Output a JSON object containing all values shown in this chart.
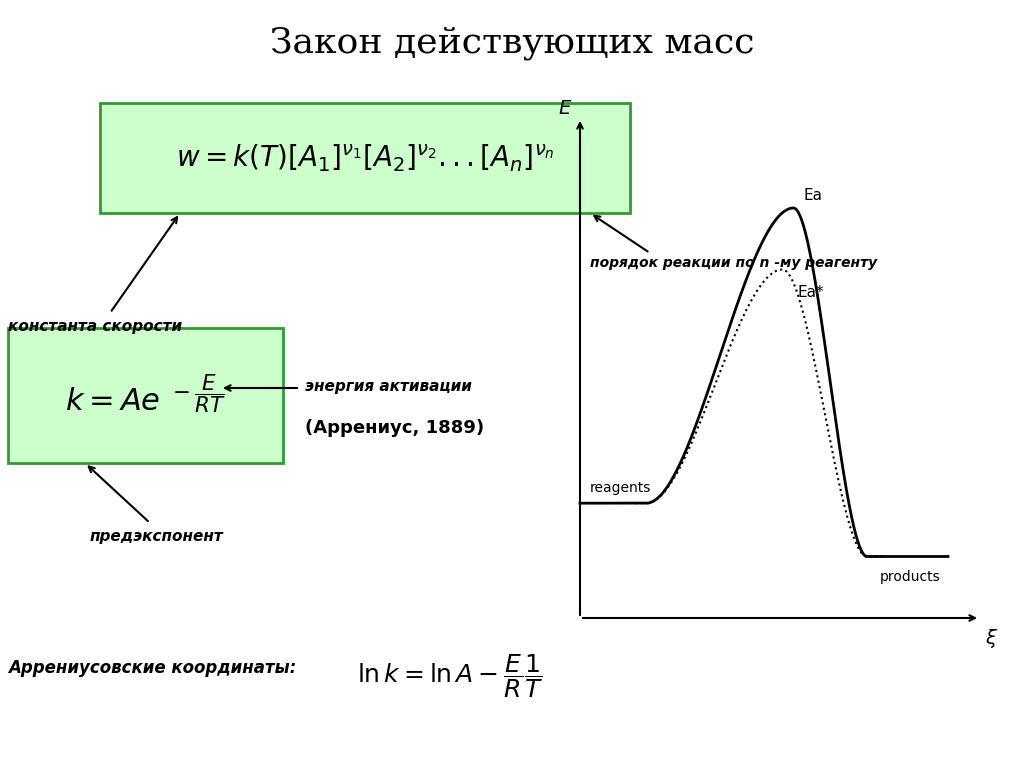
{
  "title": "Закон действующих масс",
  "title_fontsize": 26,
  "bg_color": "#ffffff",
  "box_facecolor": "#ccffcc",
  "box_edgecolor": "#339933",
  "formula1": "w = k(T)[A_{1}]^{\\nu_1}[A_{2}]^{\\nu_2}...[A_n]^{\\nu_n}",
  "formula2": "k = Ae^{-\\dfrac{E}{RT}}",
  "formula3": "\\ln k = \\ln A - \\dfrac{E}{R}\\dfrac{1}{T}",
  "label_poryadok": "порядок реакции по n -му реагенту",
  "label_konstanta": "константа скорости",
  "label_energiya": "энергия активации",
  "label_arrenius": "(Аррениус, 1889)",
  "label_predexp": "предэкспонент",
  "label_arrcoord": "Аррениусовские координаты:",
  "label_reagents": "reagents",
  "label_products": "products",
  "label_E": "E",
  "label_xi": "ξ",
  "label_Ea": "Ea",
  "label_Ea_star": "Ea*"
}
